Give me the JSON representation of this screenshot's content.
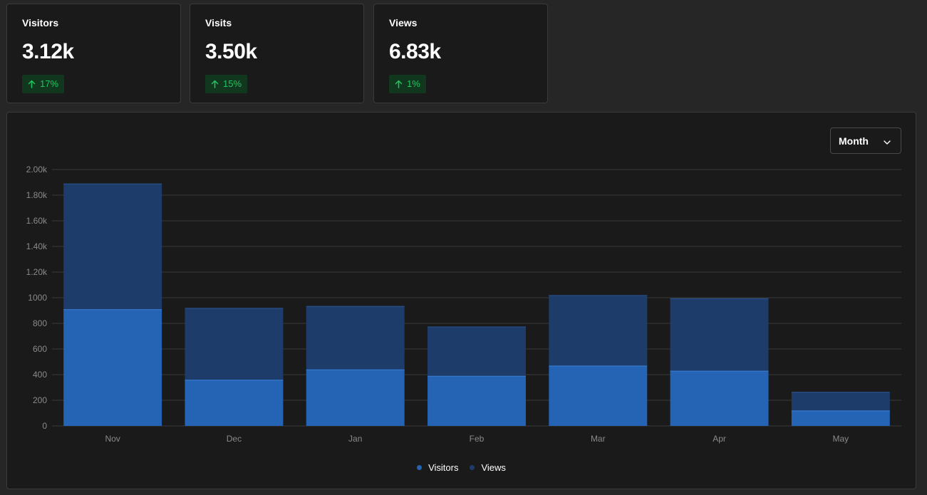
{
  "metrics": [
    {
      "label": "Visitors",
      "value": "3.12k",
      "change": "17%",
      "trend": "up"
    },
    {
      "label": "Visits",
      "value": "3.50k",
      "change": "15%",
      "trend": "up"
    },
    {
      "label": "Views",
      "value": "6.83k",
      "change": "1%",
      "trend": "up"
    }
  ],
  "period_select": {
    "value": "Month"
  },
  "colors": {
    "visitors": "#2563b5",
    "views": "#1e3c6a",
    "positive": "#22c55e",
    "positive_bg": "#11381f",
    "grid": "#3a3a3a",
    "tick": "#8a8a8a"
  },
  "icons": {
    "trend_up": "arrow-up-icon",
    "select": "chevron-down-icon"
  },
  "chart_data": {
    "type": "bar",
    "stacked": true,
    "categories": [
      "Nov",
      "Dec",
      "Jan",
      "Feb",
      "Mar",
      "Apr",
      "May"
    ],
    "series": [
      {
        "name": "Visitors",
        "values": [
          910,
          360,
          440,
          390,
          470,
          430,
          120
        ]
      },
      {
        "name": "Views",
        "values": [
          980,
          560,
          495,
          385,
          550,
          565,
          145
        ]
      }
    ],
    "ylim": [
      0,
      2000
    ],
    "yticks": [
      0,
      200,
      400,
      600,
      800,
      1000,
      1200,
      1400,
      1600,
      1800,
      2000
    ],
    "ytick_labels": [
      "0",
      "200",
      "400",
      "600",
      "800",
      "1000",
      "1.20k",
      "1.40k",
      "1.60k",
      "1.80k",
      "2.00k"
    ],
    "grid": true,
    "legend_position": "bottom-center",
    "title": "",
    "xlabel": "",
    "ylabel": ""
  }
}
